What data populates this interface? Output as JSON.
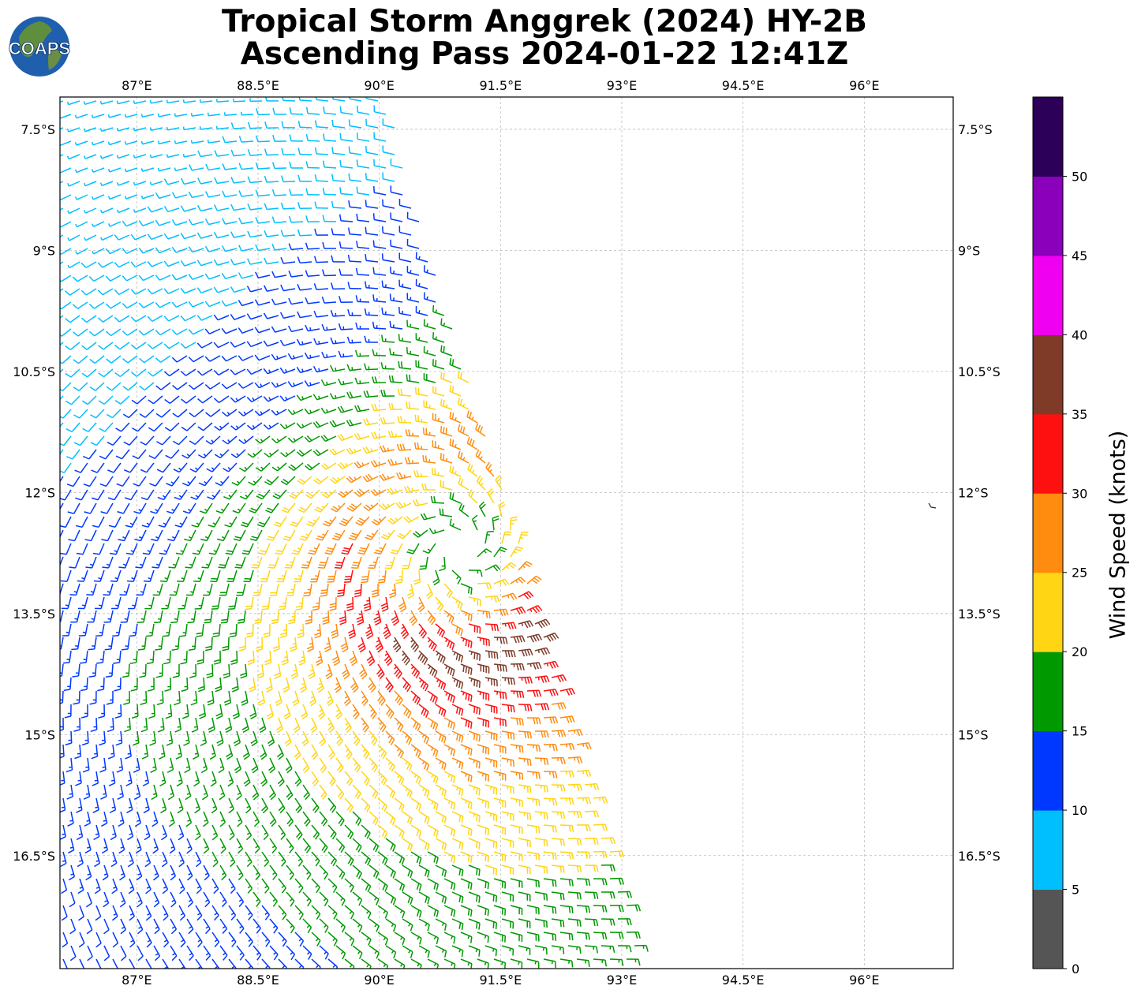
{
  "title": {
    "line1": "Tropical Storm Anggrek (2024) HY-2B",
    "line2": "Ascending Pass 2024-01-22 12:41Z"
  },
  "logo": {
    "text": "COAPS",
    "icon": "globe-icon"
  },
  "map": {
    "lon_ticks": [
      "87°E",
      "88.5°E",
      "90°E",
      "91.5°E",
      "93°E",
      "94.5°E",
      "96°E"
    ],
    "lat_ticks": [
      "7.5°S",
      "9°S",
      "10.5°S",
      "12°S",
      "13.5°S",
      "15°S",
      "16.5°S"
    ],
    "lon_range": [
      86.05,
      97.1
    ],
    "lat_range": [
      -17.9,
      -7.1
    ],
    "gridlines": true,
    "storm_center": {
      "lon": 91.0,
      "lat": -12.7
    },
    "island_feature": {
      "lon": 96.85,
      "lat": -12.17
    }
  },
  "colorbar": {
    "label": "Wind Speed (knots)",
    "tick_labels": [
      "0",
      "5",
      "10",
      "15",
      "20",
      "25",
      "30",
      "35",
      "40",
      "45",
      "50"
    ],
    "bins": [
      {
        "min": 0,
        "max": 5,
        "color": "#555555"
      },
      {
        "min": 5,
        "max": 10,
        "color": "#00bfff"
      },
      {
        "min": 10,
        "max": 15,
        "color": "#0038ff"
      },
      {
        "min": 15,
        "max": 20,
        "color": "#009900"
      },
      {
        "min": 20,
        "max": 25,
        "color": "#ffd514"
      },
      {
        "min": 25,
        "max": 30,
        "color": "#ff8c0e"
      },
      {
        "min": 30,
        "max": 35,
        "color": "#ff1010"
      },
      {
        "min": 35,
        "max": 40,
        "color": "#7f3a28"
      },
      {
        "min": 40,
        "max": 45,
        "color": "#f000f0"
      },
      {
        "min": 45,
        "max": 50,
        "color": "#8a00bb"
      },
      {
        "min": 50,
        "max": 55,
        "color": "#2c0058"
      }
    ]
  }
}
